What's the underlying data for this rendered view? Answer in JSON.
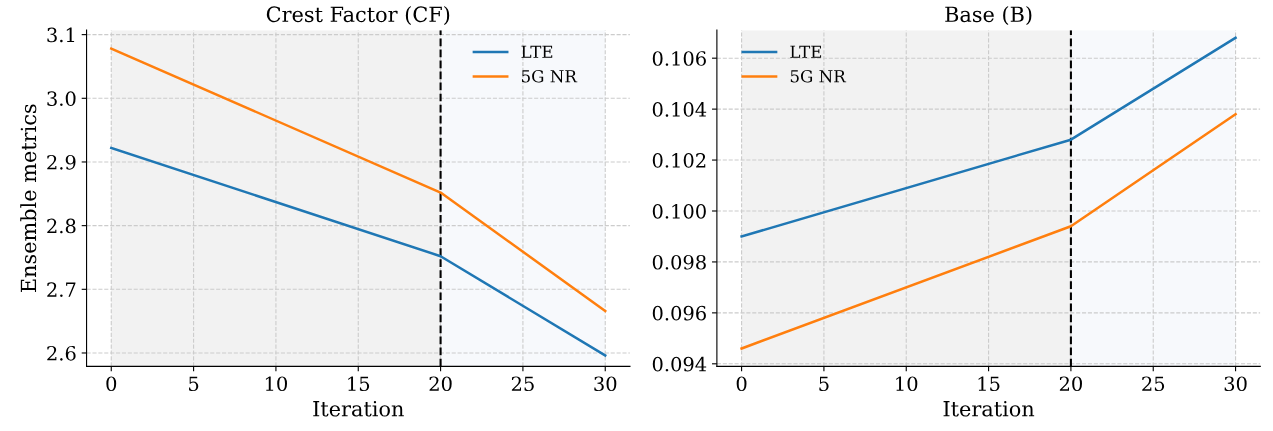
{
  "chart_data": [
    {
      "type": "line",
      "title": "Crest Factor (CF)",
      "xlabel": "Iteration",
      "ylabel": "Ensemble metrics",
      "x": [
        0,
        20,
        30
      ],
      "series": [
        {
          "name": "LTE",
          "color": "#1f77b4",
          "values": [
            2.922,
            2.752,
            2.596
          ]
        },
        {
          "name": "5G NR",
          "color": "#ff7f0e",
          "values": [
            3.078,
            2.852,
            2.666
          ]
        }
      ],
      "xlim": [
        -1.5,
        31.5
      ],
      "xticks": [
        0,
        5,
        10,
        15,
        20,
        25,
        30
      ],
      "ylim": [
        2.579,
        3.107
      ],
      "yticks": [
        2.6,
        2.7,
        2.8,
        2.9,
        {
          "value": 3.0,
          "label": "3.0"
        },
        3.1
      ],
      "ref_lines": [
        {
          "axis": "x",
          "value": 20,
          "color": "#000000",
          "line_style": "dashed"
        }
      ],
      "bands": [
        {
          "axis": "x",
          "from": 0,
          "to": 20,
          "color": "#f2f2f2"
        },
        {
          "axis": "x",
          "from": 20,
          "to": 30,
          "color": "#f7f9fc"
        }
      ],
      "grid": true,
      "legend": "top right",
      "marker": "none",
      "line_style": "solid"
    },
    {
      "type": "line",
      "title": "Base (B)",
      "xlabel": "Iteration",
      "x": [
        0,
        20,
        30
      ],
      "series": [
        {
          "name": "LTE",
          "color": "#1f77b4",
          "values": [
            0.099,
            0.1028,
            0.1068
          ]
        },
        {
          "name": "5G NR",
          "color": "#ff7f0e",
          "values": [
            0.0946,
            0.0994,
            0.1038
          ]
        }
      ],
      "xlim": [
        -1.5,
        31.5
      ],
      "xticks": [
        0,
        5,
        10,
        15,
        20,
        25,
        30
      ],
      "ylim": [
        0.0939,
        0.1071
      ],
      "yticks": [
        {
          "value": 0.094,
          "label": "0.094"
        },
        {
          "value": 0.096,
          "label": "0.096"
        },
        {
          "value": 0.098,
          "label": "0.098"
        },
        {
          "value": 0.1,
          "label": "0.100"
        },
        {
          "value": 0.102,
          "label": "0.102"
        },
        {
          "value": 0.104,
          "label": "0.104"
        },
        {
          "value": 0.106,
          "label": "0.106"
        }
      ],
      "ref_lines": [
        {
          "axis": "x",
          "value": 20,
          "color": "#000000",
          "line_style": "dashed"
        }
      ],
      "bands": [
        {
          "axis": "x",
          "from": 0,
          "to": 20,
          "color": "#f2f2f2"
        },
        {
          "axis": "x",
          "from": 20,
          "to": 30,
          "color": "#f7f9fc"
        }
      ],
      "grid": true,
      "legend": "top left",
      "marker": "none",
      "line_style": "solid"
    }
  ]
}
